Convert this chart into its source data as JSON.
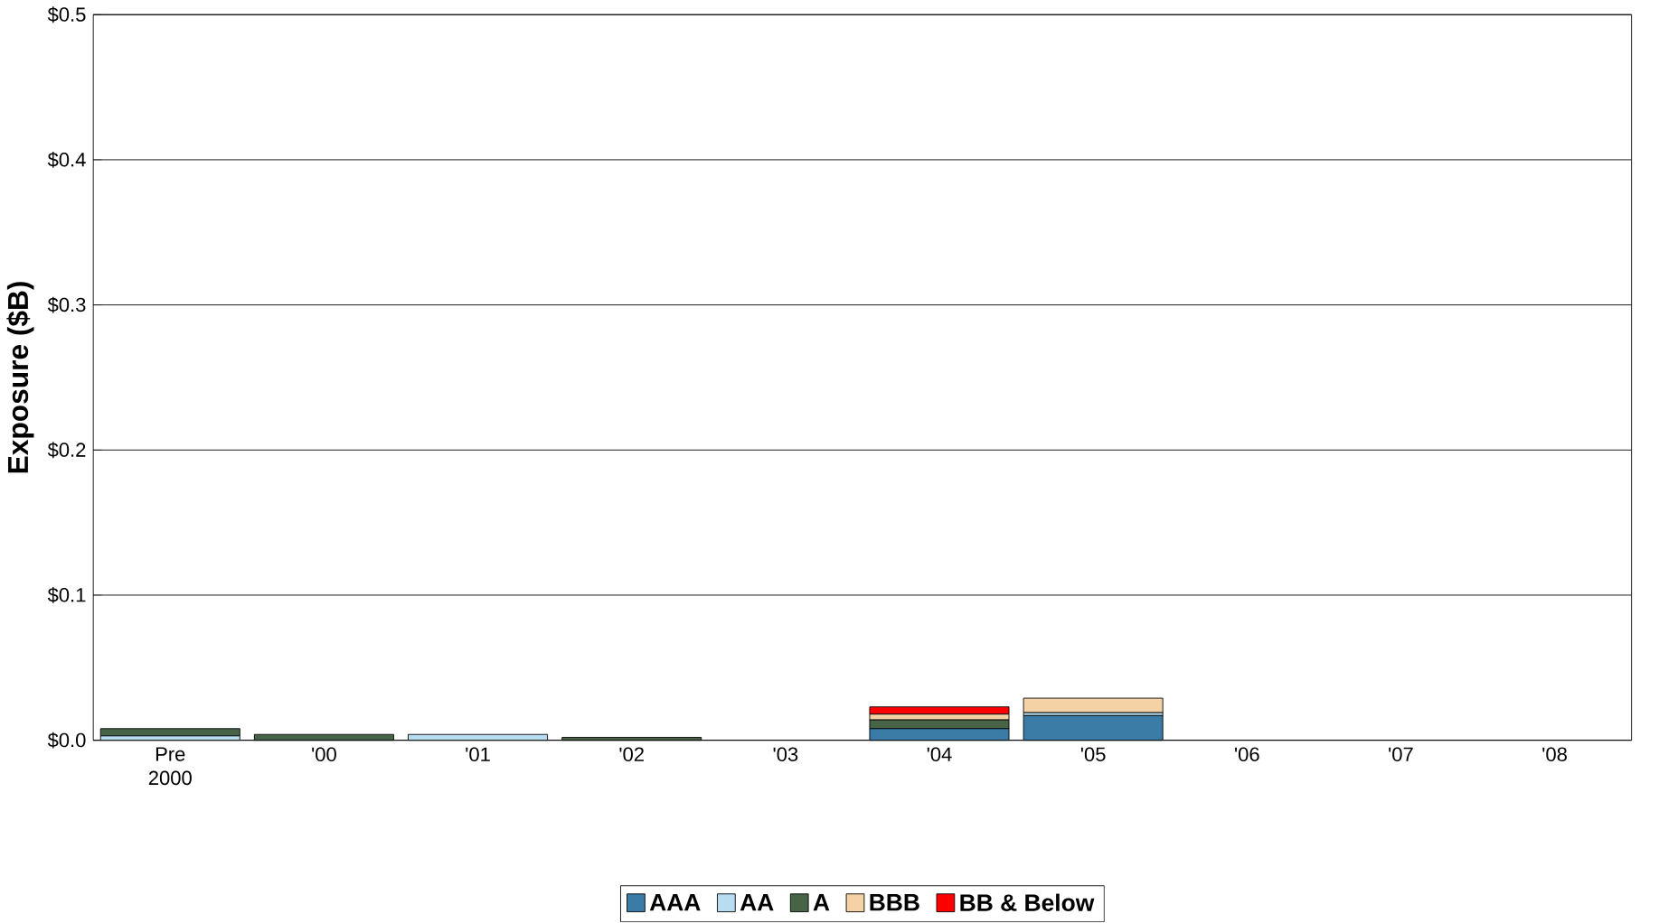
{
  "chart_data": {
    "type": "bar",
    "stacked": true,
    "ylabel": "Exposure ($B)",
    "categories": [
      "Pre 2000",
      "'00",
      "'01",
      "'02",
      "'03",
      "'04",
      "'05",
      "'06",
      "'07",
      "'08"
    ],
    "series": [
      {
        "name": "AAA",
        "color": "#3a7ca5",
        "values": [
          0,
          0,
          0,
          0,
          0,
          0.008,
          0.017,
          0,
          0,
          0
        ]
      },
      {
        "name": "AA",
        "color": "#b8dcf0",
        "values": [
          0.003,
          0,
          0.004,
          0,
          0,
          0,
          0.002,
          0,
          0,
          0
        ]
      },
      {
        "name": "A",
        "color": "#476447",
        "values": [
          0.005,
          0.004,
          0,
          0.002,
          0,
          0.006,
          0,
          0,
          0,
          0
        ]
      },
      {
        "name": "BBB",
        "color": "#f5d2a6",
        "values": [
          0,
          0,
          0,
          0,
          0,
          0.004,
          0.01,
          0,
          0,
          0
        ]
      },
      {
        "name": "BB & Below",
        "color": "#ff0000",
        "values": [
          0,
          0,
          0,
          0,
          0,
          0.005,
          0,
          0,
          0,
          0
        ]
      }
    ],
    "ylim": [
      0,
      0.5
    ],
    "yticks": [
      {
        "value": 0,
        "label": "$0.0"
      },
      {
        "value": 0.1,
        "label": "$0.1"
      },
      {
        "value": 0.2,
        "label": "$0.2"
      },
      {
        "value": 0.3,
        "label": "$0.3"
      },
      {
        "value": 0.4,
        "label": "$0.4"
      },
      {
        "value": 0.5,
        "label": "$0.5"
      }
    ],
    "grid": "y",
    "legend": "bottom"
  }
}
